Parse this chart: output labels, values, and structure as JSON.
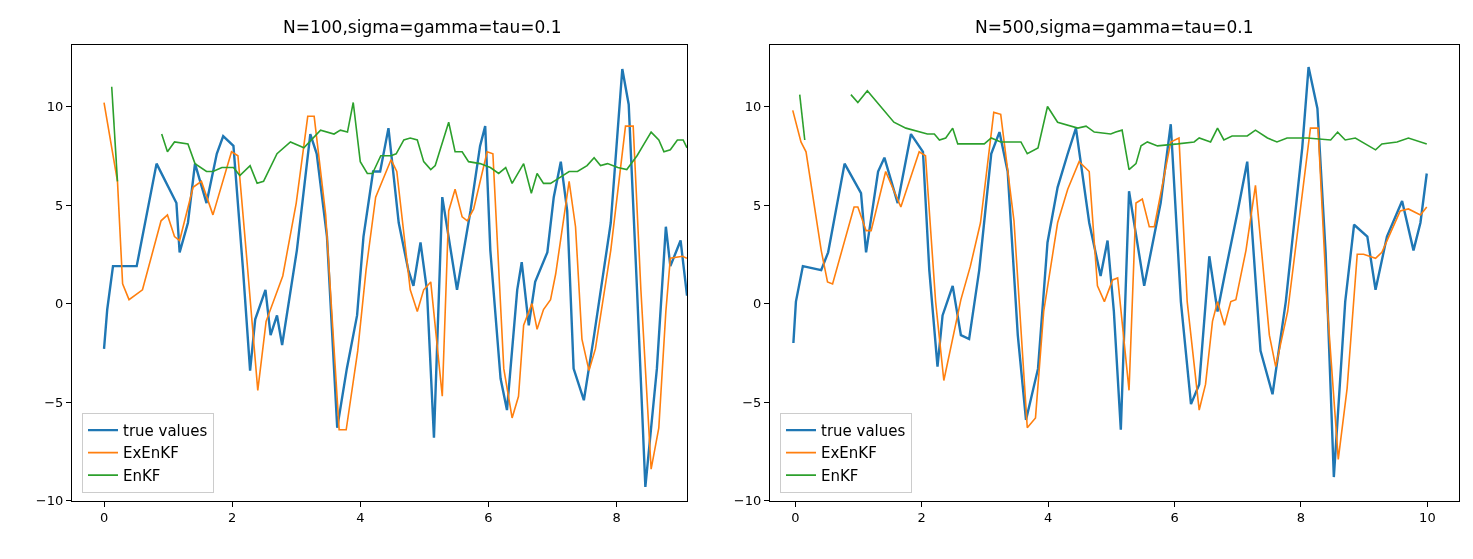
{
  "chart_data": [
    {
      "type": "line",
      "title": "N=100,sigma=gamma=tau=0.1",
      "xlim": [
        -0.5,
        9.1
      ],
      "ylim": [
        -10,
        13.1
      ],
      "xticks": [
        0,
        2,
        4,
        6,
        8
      ],
      "yticks": [
        -10,
        -5,
        0,
        5,
        10
      ],
      "legend": "bottom left",
      "series": [
        {
          "name": "true values",
          "color": "#1f77b4",
          "x": [
            0.0,
            0.05,
            0.14,
            0.51,
            0.82,
            1.13,
            1.18,
            1.31,
            1.42,
            1.6,
            1.76,
            1.86,
            2.02,
            2.17,
            2.28,
            2.36,
            2.52,
            2.6,
            2.7,
            2.78,
            3.01,
            3.22,
            3.32,
            3.48,
            3.64,
            3.79,
            3.95,
            4.05,
            4.2,
            4.31,
            4.44,
            4.6,
            4.75,
            4.83,
            4.94,
            5.04,
            5.15,
            5.28,
            5.51,
            5.72,
            5.87,
            5.95,
            6.03,
            6.19,
            6.29,
            6.45,
            6.52,
            6.63,
            6.73,
            6.92,
            7.02,
            7.13,
            7.23,
            7.33,
            7.49,
            7.65,
            7.91,
            8.09,
            8.19,
            8.32,
            8.45,
            8.63,
            8.77,
            8.84,
            9.0,
            9.1
          ],
          "values": [
            -2.3,
            -0.3,
            1.9,
            1.9,
            7.1,
            5.1,
            2.6,
            4.1,
            7.1,
            5.1,
            7.6,
            8.5,
            8.0,
            1.7,
            -3.4,
            -0.8,
            0.7,
            -1.6,
            -0.6,
            -2.1,
            2.7,
            8.6,
            7.6,
            3.4,
            -6.3,
            -3.3,
            -0.6,
            3.4,
            6.7,
            6.7,
            8.9,
            4.1,
            1.7,
            0.9,
            3.1,
            0.7,
            -6.8,
            5.4,
            0.7,
            4.7,
            8.0,
            9.0,
            2.7,
            -3.8,
            -5.4,
            0.7,
            2.1,
            -1.1,
            1.1,
            2.6,
            5.4,
            7.2,
            4.7,
            -3.3,
            -4.9,
            -1.6,
            4.1,
            11.9,
            10.1,
            0.7,
            -9.3,
            -3.3,
            3.9,
            1.9,
            3.2,
            0.4
          ]
        },
        {
          "name": "ExEnKF",
          "color": "#ff7f0e",
          "x": [
            0.0,
            0.21,
            0.29,
            0.39,
            0.6,
            0.89,
            0.99,
            1.1,
            1.18,
            1.39,
            1.52,
            1.7,
            1.99,
            2.09,
            2.22,
            2.4,
            2.53,
            2.79,
            3.0,
            3.18,
            3.28,
            3.46,
            3.67,
            3.78,
            3.96,
            4.09,
            4.24,
            4.48,
            4.57,
            4.78,
            4.89,
            4.99,
            5.1,
            5.28,
            5.38,
            5.48,
            5.59,
            5.67,
            5.77,
            5.98,
            6.07,
            6.24,
            6.37,
            6.47,
            6.55,
            6.68,
            6.76,
            6.86,
            6.97,
            7.05,
            7.26,
            7.36,
            7.46,
            7.57,
            7.67,
            7.91,
            8.14,
            8.26,
            8.38,
            8.54,
            8.66,
            8.77,
            8.84,
            9.03,
            9.1
          ],
          "values": [
            10.2,
            6.2,
            1.0,
            0.2,
            0.7,
            4.2,
            4.5,
            3.4,
            3.2,
            5.9,
            6.2,
            4.5,
            7.7,
            7.5,
            2.6,
            -4.4,
            -0.9,
            1.4,
            5.1,
            9.5,
            9.5,
            4.5,
            -6.4,
            -6.4,
            -2.4,
            1.7,
            5.4,
            7.3,
            6.7,
            0.7,
            -0.4,
            0.7,
            1.1,
            -4.7,
            4.7,
            5.8,
            4.4,
            4.2,
            4.8,
            7.7,
            7.6,
            -3.3,
            -5.8,
            -4.7,
            -1.1,
            0.0,
            -1.3,
            -0.3,
            0.2,
            1.5,
            6.2,
            3.9,
            -1.8,
            -3.4,
            -2.3,
            2.7,
            9.0,
            9.0,
            0.7,
            -8.4,
            -6.3,
            -0.4,
            2.3,
            2.4,
            2.3
          ]
        },
        {
          "name": "EnKF",
          "color": "#2ca02c",
          "x": [
            0.12,
            0.21,
            0.24,
            0.82,
            0.9,
            0.99,
            1.1,
            1.31,
            1.42,
            1.6,
            1.7,
            1.84,
            2.02,
            2.12,
            2.28,
            2.39,
            2.49,
            2.7,
            2.91,
            3.12,
            3.38,
            3.59,
            3.69,
            3.8,
            3.89,
            4.0,
            4.11,
            4.19,
            4.32,
            4.48,
            4.56,
            4.68,
            4.78,
            4.89,
            4.99,
            5.1,
            5.17,
            5.38,
            5.48,
            5.59,
            5.69,
            5.87,
            6.03,
            6.16,
            6.27,
            6.37,
            6.55,
            6.67,
            6.76,
            6.86,
            6.97,
            7.07,
            7.26,
            7.39,
            7.54,
            7.65,
            7.75,
            7.86,
            8.02,
            8.16,
            8.32,
            8.43,
            8.54,
            8.66,
            8.74,
            8.84,
            8.95,
            9.04,
            9.1
          ],
          "values": [
            11.0,
            6.2,
            null,
            null,
            8.6,
            7.7,
            8.2,
            8.1,
            7.1,
            6.7,
            6.7,
            6.9,
            6.9,
            6.5,
            7.0,
            6.1,
            6.2,
            7.6,
            8.2,
            7.9,
            8.8,
            8.6,
            8.8,
            8.7,
            10.2,
            7.2,
            6.6,
            6.6,
            7.5,
            7.5,
            7.6,
            8.3,
            8.4,
            8.3,
            7.2,
            6.8,
            7.0,
            9.2,
            7.7,
            7.7,
            7.2,
            7.1,
            6.9,
            6.6,
            6.9,
            6.1,
            7.1,
            5.6,
            6.6,
            6.1,
            6.1,
            6.3,
            6.7,
            6.7,
            7.0,
            7.4,
            7.0,
            7.1,
            6.9,
            6.8,
            7.5,
            8.1,
            8.7,
            8.3,
            7.7,
            7.8,
            8.3,
            8.3,
            7.9
          ]
        }
      ]
    },
    {
      "type": "line",
      "title": "N=500,sigma=gamma=tau=0.1",
      "xlim": [
        -0.4,
        10.5
      ],
      "ylim": [
        -10,
        13.1
      ],
      "xticks": [
        0,
        2,
        4,
        6,
        8,
        10
      ],
      "yticks": [
        -10,
        -5,
        0,
        5,
        10
      ],
      "legend": "bottom left",
      "series": [
        {
          "name": "true values",
          "color": "#1f77b4",
          "x": [
            -0.03,
            0.01,
            0.12,
            0.41,
            0.52,
            0.78,
            1.04,
            1.12,
            1.31,
            1.41,
            1.62,
            1.83,
            2.02,
            2.12,
            2.25,
            2.33,
            2.49,
            2.62,
            2.75,
            2.91,
            3.1,
            3.23,
            3.36,
            3.52,
            3.65,
            3.84,
            3.99,
            4.15,
            4.31,
            4.44,
            4.65,
            4.83,
            4.94,
            5.04,
            5.15,
            5.28,
            5.52,
            5.78,
            5.94,
            6.1,
            6.26,
            6.39,
            6.55,
            6.68,
            6.79,
            7.0,
            7.15,
            7.36,
            7.55,
            7.76,
            8.02,
            8.12,
            8.26,
            8.39,
            8.52,
            8.7,
            8.84,
            9.05,
            9.18,
            9.36,
            9.6,
            9.78,
            9.89,
            9.99
          ],
          "values": [
            -2.0,
            0.1,
            1.9,
            1.7,
            2.6,
            7.1,
            5.6,
            2.6,
            6.7,
            7.4,
            5.1,
            8.6,
            7.7,
            1.7,
            -3.2,
            -0.6,
            0.9,
            -1.6,
            -1.8,
            1.7,
            7.6,
            8.7,
            6.7,
            -1.6,
            -5.9,
            -3.3,
            3.1,
            5.9,
            7.6,
            8.9,
            4.1,
            1.4,
            3.2,
            -0.4,
            -6.4,
            5.7,
            0.9,
            5.1,
            9.1,
            0.1,
            -5.1,
            -4.1,
            2.4,
            -0.4,
            1.4,
            4.7,
            7.2,
            -2.4,
            -4.6,
            0.1,
            7.9,
            12.0,
            9.9,
            2.6,
            -8.8,
            0.1,
            4.0,
            3.4,
            0.7,
            3.4,
            5.2,
            2.7,
            4.1,
            6.6
          ]
        },
        {
          "name": "ExEnKF",
          "color": "#ff7f0e",
          "x": [
            -0.04,
            0.09,
            0.17,
            0.41,
            0.51,
            0.59,
            0.93,
            0.99,
            1.12,
            1.2,
            1.43,
            1.67,
            1.96,
            2.06,
            2.22,
            2.35,
            2.62,
            2.77,
            2.93,
            3.14,
            3.25,
            3.46,
            3.67,
            3.8,
            3.93,
            4.15,
            4.31,
            4.49,
            4.65,
            4.78,
            4.89,
            5.02,
            5.1,
            5.28,
            5.39,
            5.49,
            5.6,
            5.68,
            5.94,
            6.07,
            6.2,
            6.39,
            6.49,
            6.6,
            6.68,
            6.79,
            6.89,
            6.97,
            7.13,
            7.28,
            7.5,
            7.6,
            7.79,
            8.15,
            8.27,
            8.41,
            8.59,
            8.73,
            8.89,
            8.99,
            9.18,
            9.28,
            9.57,
            9.7,
            9.89,
            9.99
          ],
          "values": [
            9.8,
            8.2,
            7.7,
            2.7,
            1.1,
            1.0,
            4.9,
            4.9,
            3.7,
            3.7,
            6.7,
            4.9,
            7.7,
            7.5,
            0.1,
            -3.9,
            0.2,
            1.9,
            4.1,
            9.7,
            9.6,
            4.2,
            -6.3,
            -5.8,
            -0.4,
            4.1,
            5.8,
            7.2,
            6.7,
            0.9,
            0.1,
            1.2,
            1.3,
            -4.4,
            5.1,
            5.3,
            3.9,
            3.9,
            8.2,
            8.4,
            0.1,
            -5.4,
            -4.1,
            -0.9,
            0.1,
            -1.1,
            0.1,
            0.2,
            2.7,
            6.0,
            -1.6,
            -3.2,
            -0.4,
            8.9,
            8.9,
            0.1,
            -7.9,
            -4.3,
            2.5,
            2.5,
            2.3,
            2.6,
            4.7,
            4.8,
            4.5,
            4.9
          ]
        },
        {
          "name": "EnKF",
          "color": "#2ca02c",
          "x": [
            0.07,
            0.15,
            0.19,
            0.82,
            0.88,
            0.99,
            1.14,
            1.27,
            1.56,
            1.75,
            2.09,
            2.2,
            2.28,
            2.38,
            2.49,
            2.57,
            2.73,
            2.99,
            3.1,
            3.25,
            3.57,
            3.67,
            3.84,
            3.99,
            4.15,
            4.47,
            4.6,
            4.73,
            4.99,
            5.07,
            5.17,
            5.28,
            5.39,
            5.47,
            5.57,
            5.73,
            6.05,
            6.31,
            6.39,
            6.57,
            6.68,
            6.78,
            6.91,
            7.15,
            7.28,
            7.47,
            7.62,
            7.78,
            8.1,
            8.47,
            8.58,
            8.7,
            8.86,
            9.18,
            9.28,
            9.52,
            9.7,
            9.99
          ],
          "values": [
            10.6,
            8.3,
            null,
            null,
            10.6,
            10.2,
            10.8,
            10.3,
            9.2,
            8.9,
            8.6,
            8.6,
            8.3,
            8.4,
            8.9,
            8.1,
            8.1,
            8.1,
            8.4,
            8.2,
            8.2,
            7.6,
            7.9,
            10.0,
            9.2,
            8.9,
            9.0,
            8.7,
            8.6,
            8.7,
            8.8,
            6.8,
            7.1,
            8.0,
            8.2,
            8.0,
            8.1,
            8.2,
            8.4,
            8.2,
            8.9,
            8.3,
            8.5,
            8.5,
            8.8,
            8.4,
            8.2,
            8.4,
            8.4,
            8.3,
            8.7,
            8.3,
            8.4,
            7.8,
            8.1,
            8.2,
            8.4,
            8.1
          ]
        }
      ]
    }
  ]
}
